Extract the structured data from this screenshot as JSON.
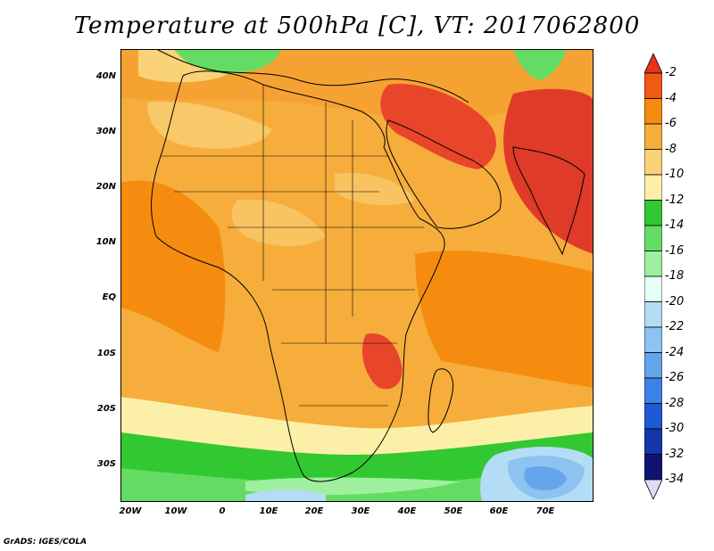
{
  "title": "Temperature at 500hPa [C], VT: 2017062800",
  "credit": "GrADS: IGES/COLA",
  "map": {
    "lat_labels": [
      "40N",
      "30N",
      "20N",
      "10N",
      "EQ",
      "10S",
      "20S",
      "30S"
    ],
    "lon_labels": [
      "20W",
      "10W",
      "0",
      "10E",
      "20E",
      "30E",
      "40E",
      "50E",
      "60E",
      "70E"
    ]
  },
  "colorbar": {
    "labels": [
      "-2",
      "-4",
      "-6",
      "-8",
      "-10",
      "-12",
      "-14",
      "-16",
      "-18",
      "-20",
      "-22",
      "-24",
      "-26",
      "-28",
      "-30",
      "-32",
      "-34"
    ],
    "colors": [
      "#e8321c",
      "#f05a14",
      "#f58c0f",
      "#f6ad3c",
      "#fad278",
      "#fcf0a8",
      "#32c832",
      "#64dc64",
      "#9ef09e",
      "#e6fff6",
      "#b4dcf5",
      "#8cc3f0",
      "#64a5eb",
      "#3c82e6",
      "#1e5ad2",
      "#1437aa",
      "#0f1473",
      "#dcdcf5"
    ],
    "cap_top_color": "#e8321c",
    "cap_bottom_color": "#dcdcf5"
  },
  "fill_colors": {
    "base_ocean": "#f6ad3c",
    "land_warm": "#f6a233",
    "hot": "#e8452a",
    "very_hot": "#e03a28",
    "cool": "#fad278",
    "pale": "#fcf0a8",
    "green": "#32c832",
    "light_green": "#64dc64",
    "pale_green": "#9ef09e",
    "cyan": "#e6fff6",
    "light_blue": "#b4dcf5",
    "blue": "#8cc3f0",
    "mid_blue": "#64a5eb"
  }
}
